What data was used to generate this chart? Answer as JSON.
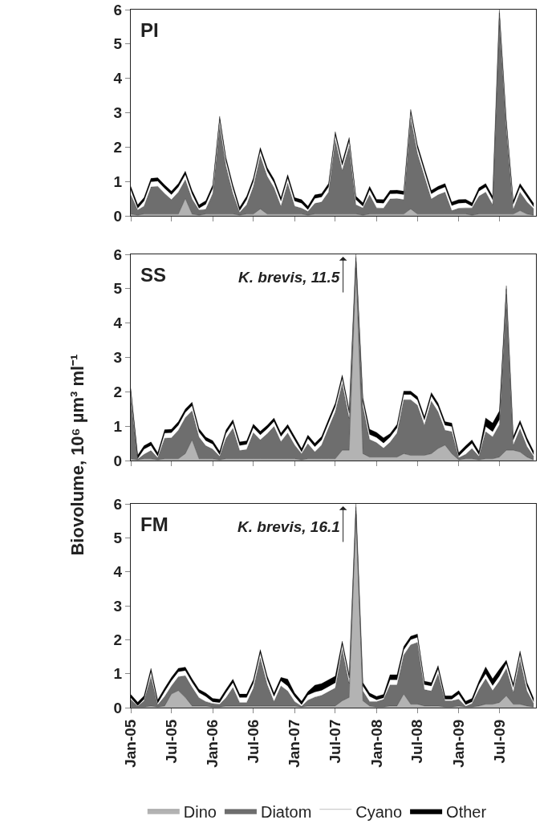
{
  "chart_data": [
    {
      "type": "area",
      "title": "PI",
      "stacked": true,
      "legend": false,
      "tick_labels": "y",
      "x": [
        "2005-01",
        "2005-02",
        "2005-03",
        "2005-04",
        "2005-05",
        "2005-06",
        "2005-07",
        "2005-08",
        "2005-09",
        "2005-10",
        "2005-11",
        "2005-12",
        "2006-01",
        "2006-02",
        "2006-03",
        "2006-04",
        "2006-05",
        "2006-06",
        "2006-07",
        "2006-08",
        "2006-09",
        "2006-10",
        "2006-11",
        "2006-12",
        "2007-01",
        "2007-02",
        "2007-03",
        "2007-04",
        "2007-05",
        "2007-06",
        "2007-07",
        "2007-08",
        "2007-09",
        "2007-10",
        "2007-11",
        "2007-12",
        "2008-01",
        "2008-02",
        "2008-03",
        "2008-04",
        "2008-05",
        "2008-06",
        "2008-07",
        "2008-08",
        "2008-09",
        "2008-10",
        "2008-11",
        "2008-12",
        "2009-01",
        "2009-02",
        "2009-03",
        "2009-04",
        "2009-05",
        "2009-06",
        "2009-07",
        "2009-08",
        "2009-09",
        "2009-10",
        "2009-11",
        "2009-12"
      ],
      "xlim": [
        "2005-01-01",
        "2009-12-11"
      ],
      "xticks": [
        {
          "value": "2005-01-01",
          "label": null
        },
        {
          "value": "2005-07-01",
          "label": null
        },
        {
          "value": "2006-01-01",
          "label": null
        },
        {
          "value": "2006-07-01",
          "label": null
        },
        {
          "value": "2007-01-01",
          "label": null
        },
        {
          "value": "2007-07-01",
          "label": null
        },
        {
          "value": "2008-01-01",
          "label": null
        },
        {
          "value": "2008-07-01",
          "label": null
        },
        {
          "value": "2009-01-01",
          "label": null
        },
        {
          "value": "2009-07-01",
          "label": null
        }
      ],
      "ylim": [
        0,
        6
      ],
      "yticks": [
        0,
        1,
        2,
        3,
        4,
        5,
        6
      ],
      "series": [
        {
          "color": "#b3b3b3",
          "values": [
            0.05,
            0.02,
            0.05,
            0.05,
            0.05,
            0.05,
            0.05,
            0.05,
            0.5,
            0.05,
            0.02,
            0.05,
            0.05,
            0.05,
            0.05,
            0.05,
            0.02,
            0.05,
            0.05,
            0.2,
            0.05,
            0.05,
            0.05,
            0.05,
            0.05,
            0.05,
            0.02,
            0.05,
            0.05,
            0.05,
            0.05,
            0.05,
            0.05,
            0.05,
            0.02,
            0.05,
            0.05,
            0.05,
            0.05,
            0.05,
            0.05,
            0.2,
            0.05,
            0.05,
            0.05,
            0.05,
            0.05,
            0.05,
            0.05,
            0.05,
            0.02,
            0.05,
            0.05,
            0.05,
            0.05,
            0.05,
            0.05,
            0.15,
            0.05,
            0.02
          ]
        },
        {
          "color": "#6e6e6e",
          "values": [
            0.56,
            0.15,
            0.23,
            0.79,
            0.81,
            0.6,
            0.42,
            0.64,
            0.55,
            0.44,
            0.15,
            0.14,
            0.6,
            2.6,
            1.4,
            0.6,
            0.08,
            0.27,
            0.8,
            1.54,
            1.1,
            0.77,
            0.23,
            0.9,
            0.23,
            0.17,
            0.11,
            0.31,
            0.35,
            0.64,
            2.15,
            1.27,
            1.98,
            0.27,
            0.21,
            0.56,
            0.18,
            0.17,
            0.44,
            0.45,
            0.42,
            2.65,
            1.77,
            1.1,
            0.44,
            0.56,
            0.64,
            0.1,
            0.17,
            0.18,
            0.21,
            0.52,
            0.64,
            0.27,
            5.7,
            2.5,
            0.14,
            0.54,
            0.35,
            0.19
          ]
        },
        {
          "color": "#ffffff",
          "values": [
            0.15,
            0.05,
            0.15,
            0.15,
            0.15,
            0.15,
            0.15,
            0.15,
            0.15,
            0.15,
            0.05,
            0.15,
            0.15,
            0.15,
            0.15,
            0.15,
            0.05,
            0.15,
            0.15,
            0.15,
            0.15,
            0.15,
            0.15,
            0.15,
            0.15,
            0.15,
            0.05,
            0.15,
            0.15,
            0.15,
            0.15,
            0.15,
            0.15,
            0.15,
            0.05,
            0.15,
            0.15,
            0.15,
            0.15,
            0.15,
            0.15,
            0.15,
            0.15,
            0.15,
            0.15,
            0.15,
            0.15,
            0.15,
            0.15,
            0.15,
            0.05,
            0.15,
            0.15,
            0.15,
            0.15,
            0.15,
            0.15,
            0.15,
            0.15,
            0.05
          ]
        },
        {
          "color": "#000000",
          "values": [
            0.1,
            0.1,
            0.1,
            0.1,
            0.1,
            0.1,
            0.1,
            0.1,
            0.1,
            0.1,
            0.1,
            0.1,
            0.1,
            0.1,
            0.1,
            0.1,
            0.1,
            0.1,
            0.1,
            0.1,
            0.1,
            0.1,
            0.1,
            0.1,
            0.1,
            0.1,
            0.1,
            0.1,
            0.1,
            0.1,
            0.1,
            0.1,
            0.1,
            0.1,
            0.1,
            0.1,
            0.1,
            0.1,
            0.1,
            0.1,
            0.1,
            0.1,
            0.1,
            0.1,
            0.1,
            0.1,
            0.1,
            0.1,
            0.1,
            0.1,
            0.1,
            0.1,
            0.1,
            0.1,
            0.1,
            0.1,
            0.1,
            0.1,
            0.1,
            0.1
          ]
        }
      ]
    },
    {
      "type": "area",
      "title": "SS",
      "ylabel": "Biovolume, 10⁶ µm³ ml⁻¹",
      "stacked": true,
      "legend": false,
      "tick_labels": "y",
      "annotations": [
        {
          "text": "K. brevis, 11.5",
          "x": "2007-10",
          "y": 6
        }
      ],
      "x": [
        "2005-01",
        "2005-02",
        "2005-03",
        "2005-04",
        "2005-05",
        "2005-06",
        "2005-07",
        "2005-08",
        "2005-09",
        "2005-10",
        "2005-11",
        "2005-12",
        "2006-01",
        "2006-02",
        "2006-03",
        "2006-04",
        "2006-05",
        "2006-06",
        "2006-07",
        "2006-08",
        "2006-09",
        "2006-10",
        "2006-11",
        "2006-12",
        "2007-01",
        "2007-02",
        "2007-03",
        "2007-04",
        "2007-05",
        "2007-06",
        "2007-07",
        "2007-08",
        "2007-09",
        "2007-10",
        "2007-11",
        "2007-12",
        "2008-01",
        "2008-02",
        "2008-03",
        "2008-04",
        "2008-05",
        "2008-06",
        "2008-07",
        "2008-08",
        "2008-09",
        "2008-10",
        "2008-11",
        "2008-12",
        "2009-01",
        "2009-02",
        "2009-03",
        "2009-04",
        "2009-05",
        "2009-06",
        "2009-07",
        "2009-08",
        "2009-09",
        "2009-10",
        "2009-11",
        "2009-12"
      ],
      "xlim": [
        "2005-01-01",
        "2009-12-11"
      ],
      "xticks": [
        {
          "value": "2005-01-01",
          "label": null
        },
        {
          "value": "2005-07-01",
          "label": null
        },
        {
          "value": "2006-01-01",
          "label": null
        },
        {
          "value": "2006-07-01",
          "label": null
        },
        {
          "value": "2007-01-01",
          "label": null
        },
        {
          "value": "2007-07-01",
          "label": null
        },
        {
          "value": "2008-01-01",
          "label": null
        },
        {
          "value": "2008-07-01",
          "label": null
        },
        {
          "value": "2009-01-01",
          "label": null
        },
        {
          "value": "2009-07-01",
          "label": null
        }
      ],
      "ylim": [
        0,
        6
      ],
      "yticks": [
        0,
        1,
        2,
        3,
        4,
        5,
        6
      ],
      "series": [
        {
          "color": "#b3b3b3",
          "values": [
            0.05,
            0.02,
            0.05,
            0.05,
            0.02,
            0.05,
            0.05,
            0.05,
            0.2,
            0.6,
            0.05,
            0.05,
            0.05,
            0.02,
            0.05,
            0.05,
            0.05,
            0.05,
            0.05,
            0.05,
            0.05,
            0.05,
            0.05,
            0.05,
            0.05,
            0.02,
            0.05,
            0.05,
            0.05,
            0.05,
            0.05,
            0.3,
            0.3,
            5.6,
            0.2,
            0.1,
            0.1,
            0.1,
            0.1,
            0.1,
            0.2,
            0.15,
            0.15,
            0.15,
            0.2,
            0.35,
            0.45,
            0.2,
            0.02,
            0.05,
            0.05,
            0.02,
            0.05,
            0.05,
            0.1,
            0.3,
            0.3,
            0.25,
            0.1,
            0.02
          ]
        },
        {
          "color": "#6e6e6e",
          "values": [
            1.8,
            0.02,
            0.13,
            0.24,
            0.06,
            0.6,
            0.61,
            0.83,
            1.05,
            0.85,
            0.63,
            0.38,
            0.28,
            0.1,
            0.59,
            0.89,
            0.24,
            0.27,
            0.76,
            0.55,
            0.73,
            0.94,
            0.5,
            0.75,
            0.4,
            0.18,
            0.44,
            0.2,
            0.4,
            0.9,
            1.37,
            1.94,
            0.93,
            0.2,
            1.38,
            0.51,
            0.42,
            0.26,
            0.43,
            0.7,
            1.57,
            1.62,
            1.46,
            0.88,
            1.53,
            1.07,
            0.43,
            0.64,
            0.06,
            0.13,
            0.3,
            0.1,
            0.79,
            0.64,
            0.94,
            4.54,
            0.15,
            0.67,
            0.31,
            0.1
          ]
        },
        {
          "color": "#ffffff",
          "values": [
            0.15,
            0.02,
            0.15,
            0.15,
            0.05,
            0.15,
            0.15,
            0.15,
            0.15,
            0.15,
            0.15,
            0.15,
            0.15,
            0.05,
            0.15,
            0.15,
            0.15,
            0.15,
            0.15,
            0.15,
            0.15,
            0.15,
            0.15,
            0.15,
            0.15,
            0.05,
            0.15,
            0.15,
            0.15,
            0.15,
            0.15,
            0.15,
            0.15,
            0.1,
            0.15,
            0.15,
            0.15,
            0.15,
            0.15,
            0.15,
            0.15,
            0.15,
            0.15,
            0.15,
            0.15,
            0.15,
            0.15,
            0.15,
            0.05,
            0.15,
            0.15,
            0.05,
            0.15,
            0.15,
            0.15,
            0.15,
            0.15,
            0.15,
            0.15,
            0.05
          ]
        },
        {
          "color": "#000000",
          "values": [
            0.1,
            0.1,
            0.1,
            0.1,
            0.1,
            0.1,
            0.1,
            0.1,
            0.1,
            0.1,
            0.1,
            0.1,
            0.1,
            0.1,
            0.1,
            0.1,
            0.1,
            0.1,
            0.1,
            0.1,
            0.1,
            0.1,
            0.1,
            0.1,
            0.1,
            0.1,
            0.1,
            0.1,
            0.1,
            0.1,
            0.1,
            0.1,
            0.1,
            0.1,
            0.1,
            0.15,
            0.15,
            0.15,
            0.1,
            0.1,
            0.1,
            0.1,
            0.1,
            0.1,
            0.1,
            0.1,
            0.1,
            0.1,
            0.1,
            0.1,
            0.1,
            0.1,
            0.25,
            0.25,
            0.25,
            0.1,
            0.1,
            0.1,
            0.1,
            0.1
          ]
        }
      ]
    },
    {
      "type": "area",
      "title": "FM",
      "stacked": true,
      "legend": "bottom",
      "annotations": [
        {
          "text": "K. brevis, 16.1",
          "x": "2007-10",
          "y": 6
        }
      ],
      "x": [
        "2005-01",
        "2005-02",
        "2005-03",
        "2005-04",
        "2005-05",
        "2005-06",
        "2005-07",
        "2005-08",
        "2005-09",
        "2005-10",
        "2005-11",
        "2005-12",
        "2006-01",
        "2006-02",
        "2006-03",
        "2006-04",
        "2006-05",
        "2006-06",
        "2006-07",
        "2006-08",
        "2006-09",
        "2006-10",
        "2006-11",
        "2006-12",
        "2007-01",
        "2007-02",
        "2007-03",
        "2007-04",
        "2007-05",
        "2007-06",
        "2007-07",
        "2007-08",
        "2007-09",
        "2007-10",
        "2007-11",
        "2007-12",
        "2008-01",
        "2008-02",
        "2008-03",
        "2008-04",
        "2008-05",
        "2008-06",
        "2008-07",
        "2008-08",
        "2008-09",
        "2008-10",
        "2008-11",
        "2008-12",
        "2009-01",
        "2009-02",
        "2009-03",
        "2009-04",
        "2009-05",
        "2009-06",
        "2009-07",
        "2009-08",
        "2009-09",
        "2009-10",
        "2009-11",
        "2009-12"
      ],
      "xlim": [
        "2005-01-01",
        "2009-12-11"
      ],
      "xticks": [
        {
          "value": "2005-01-01",
          "label": "Jan-05"
        },
        {
          "value": "2005-07-01",
          "label": "Jul-05"
        },
        {
          "value": "2006-01-01",
          "label": "Jan-06"
        },
        {
          "value": "2006-07-01",
          "label": "Jul-06"
        },
        {
          "value": "2007-01-01",
          "label": "Jan-07"
        },
        {
          "value": "2007-07-01",
          "label": "Jul-07"
        },
        {
          "value": "2008-01-01",
          "label": "Jan-08"
        },
        {
          "value": "2008-07-01",
          "label": "Jul-08"
        },
        {
          "value": "2009-01-01",
          "label": "Jan-09"
        },
        {
          "value": "2009-07-01",
          "label": "Jul-09"
        }
      ],
      "ylim": [
        0,
        6
      ],
      "yticks": [
        0,
        1,
        2,
        3,
        4,
        5,
        6
      ],
      "series": [
        {
          "name": "Dino",
          "color": "#b3b3b3",
          "values": [
            0.02,
            0.02,
            0.02,
            0.05,
            0.02,
            0.05,
            0.4,
            0.5,
            0.3,
            0.05,
            0.05,
            0.05,
            0.02,
            0.02,
            0.05,
            0.05,
            0.05,
            0.05,
            0.05,
            0.05,
            0.05,
            0.05,
            0.05,
            0.05,
            0.05,
            0.02,
            0.05,
            0.05,
            0.05,
            0.05,
            0.05,
            0.2,
            0.3,
            5.7,
            0.2,
            0.05,
            0.02,
            0.02,
            0.05,
            0.05,
            0.4,
            0.1,
            0.1,
            0.05,
            0.05,
            0.05,
            0.02,
            0.02,
            0.05,
            0.02,
            0.02,
            0.05,
            0.1,
            0.1,
            0.15,
            0.35,
            0.1,
            0.1,
            0.05,
            0.02
          ]
        },
        {
          "name": "Diatom",
          "color": "#6e6e6e",
          "values": [
            0.22,
            0.02,
            0.18,
            0.86,
            0.06,
            0.28,
            0.24,
            0.41,
            0.64,
            0.55,
            0.24,
            0.13,
            0.1,
            0.08,
            0.24,
            0.54,
            0.1,
            0.1,
            0.52,
            1.41,
            0.63,
            0.13,
            0.59,
            0.44,
            0.13,
            0.02,
            0.17,
            0.26,
            0.31,
            0.42,
            0.53,
            1.51,
            0.42,
            0.1,
            0.29,
            0.13,
            0.16,
            0.22,
            0.62,
            0.62,
            1.15,
            1.75,
            1.82,
            0.48,
            0.44,
            0.94,
            0.18,
            0.18,
            0.2,
            0.02,
            0.1,
            0.48,
            0.75,
            0.4,
            0.63,
            0.8,
            0.35,
            1.32,
            0.44,
            0.1
          ]
        },
        {
          "name": "Cyano",
          "color": "#ffffff",
          "values": [
            0.05,
            0.02,
            0.05,
            0.15,
            0.05,
            0.15,
            0.15,
            0.15,
            0.15,
            0.15,
            0.15,
            0.15,
            0.05,
            0.05,
            0.15,
            0.15,
            0.15,
            0.15,
            0.15,
            0.15,
            0.15,
            0.15,
            0.15,
            0.15,
            0.15,
            0.05,
            0.15,
            0.15,
            0.15,
            0.15,
            0.15,
            0.15,
            0.15,
            0.1,
            0.15,
            0.15,
            0.05,
            0.05,
            0.15,
            0.15,
            0.15,
            0.15,
            0.15,
            0.15,
            0.15,
            0.15,
            0.05,
            0.05,
            0.15,
            0.05,
            0.05,
            0.15,
            0.15,
            0.15,
            0.15,
            0.15,
            0.15,
            0.15,
            0.15,
            0.05
          ]
        },
        {
          "name": "Other",
          "color": "#000000",
          "values": [
            0.1,
            0.1,
            0.1,
            0.1,
            0.1,
            0.1,
            0.1,
            0.1,
            0.1,
            0.1,
            0.1,
            0.1,
            0.1,
            0.1,
            0.1,
            0.1,
            0.1,
            0.1,
            0.1,
            0.1,
            0.1,
            0.1,
            0.1,
            0.2,
            0.1,
            0.1,
            0.1,
            0.2,
            0.2,
            0.2,
            0.2,
            0.1,
            0.1,
            0.1,
            0.1,
            0.1,
            0.1,
            0.1,
            0.15,
            0.15,
            0.1,
            0.1,
            0.1,
            0.1,
            0.1,
            0.1,
            0.1,
            0.1,
            0.1,
            0.1,
            0.1,
            0.1,
            0.2,
            0.2,
            0.2,
            0.1,
            0.1,
            0.1,
            0.1,
            0.1
          ]
        }
      ]
    }
  ]
}
